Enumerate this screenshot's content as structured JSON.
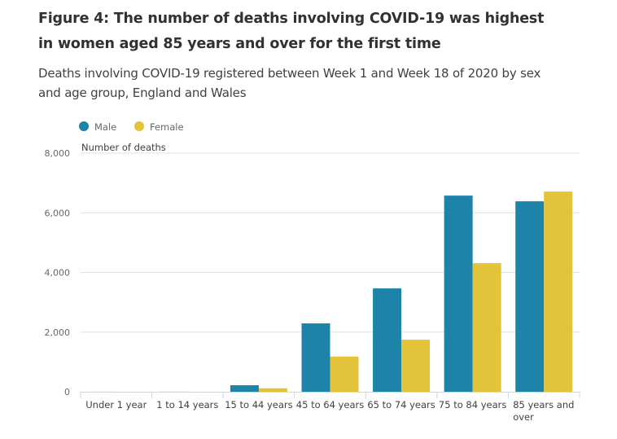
{
  "header": {
    "title": "Figure 4: The number of deaths involving COVID-19 was highest in women aged 85 years and over for the first time",
    "subtitle": "Deaths involving COVID-19 registered between Week 1 and Week 18 of 2020 by sex and age group, England and Wales"
  },
  "chart_data": {
    "type": "bar",
    "title": "Figure 4: The number of deaths involving COVID-19 was highest in women aged 85 years and over for the first time",
    "subtitle": "Deaths involving COVID-19 registered between Week 1 and Week 18 of 2020 by sex and age group, England and Wales",
    "xlabel": "",
    "ylabel": "Number of deaths",
    "ylim": [
      0,
      8000
    ],
    "yticks": [
      0,
      2000,
      4000,
      6000,
      8000
    ],
    "ytick_labels": [
      "0",
      "2,000",
      "4,000",
      "6,000",
      "8,000"
    ],
    "grid": true,
    "legend_position": "top-left",
    "categories": [
      "Under 1 year",
      "1 to 14 years",
      "15 to 44 years",
      "45 to 64 years",
      "65 to 74 years",
      "75 to 84 years",
      "85 years and over"
    ],
    "series": [
      {
        "name": "Male",
        "color": "#1d83a9",
        "values": [
          1,
          2,
          218,
          2292,
          3465,
          6576,
          6385
        ]
      },
      {
        "name": "Female",
        "color": "#e2c33a",
        "values": [
          1,
          1,
          117,
          1180,
          1746,
          4311,
          6712
        ]
      }
    ]
  }
}
